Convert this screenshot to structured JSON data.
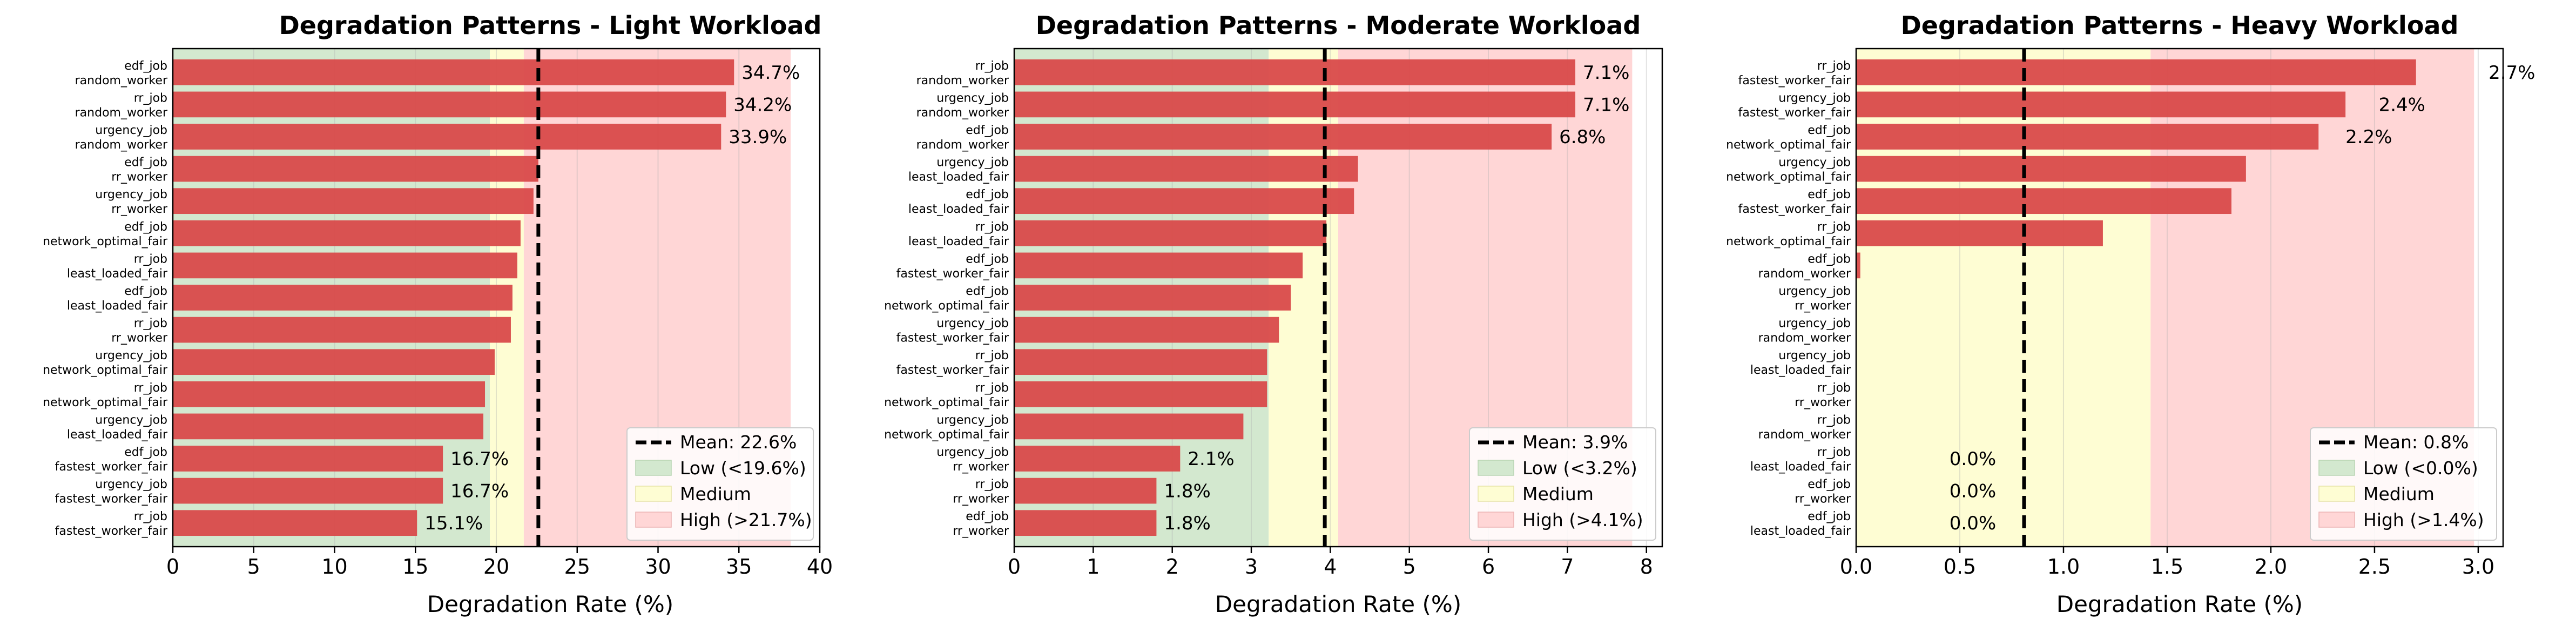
{
  "figure": {
    "colors": {
      "bar": "#d94a4a",
      "low_band": "#d3e8cf",
      "medium_band": "#fefdd3",
      "high_band": "#ffd6d6",
      "mean_line": "#000000"
    }
  },
  "chart_data": [
    {
      "type": "bar",
      "orientation": "horizontal",
      "title": "Degradation Patterns - Light Workload",
      "xlabel": "Degradation Rate (%)",
      "xlim": [
        0,
        40
      ],
      "xticks": [
        0,
        5,
        10,
        15,
        20,
        25,
        30,
        35,
        40
      ],
      "grid": true,
      "categories": [
        [
          "edf_job",
          "random_worker"
        ],
        [
          "rr_job",
          "random_worker"
        ],
        [
          "urgency_job",
          "random_worker"
        ],
        [
          "edf_job",
          "rr_worker"
        ],
        [
          "urgency_job",
          "rr_worker"
        ],
        [
          "edf_job",
          "network_optimal_fair"
        ],
        [
          "rr_job",
          "least_loaded_fair"
        ],
        [
          "edf_job",
          "least_loaded_fair"
        ],
        [
          "rr_job",
          "rr_worker"
        ],
        [
          "urgency_job",
          "network_optimal_fair"
        ],
        [
          "rr_job",
          "network_optimal_fair"
        ],
        [
          "urgency_job",
          "least_loaded_fair"
        ],
        [
          "edf_job",
          "fastest_worker_fair"
        ],
        [
          "urgency_job",
          "fastest_worker_fair"
        ],
        [
          "rr_job",
          "fastest_worker_fair"
        ]
      ],
      "values": [
        34.7,
        34.2,
        33.9,
        22.6,
        22.3,
        21.5,
        21.3,
        21.0,
        20.9,
        19.9,
        19.3,
        19.2,
        16.7,
        16.7,
        15.1
      ],
      "data_labels": [
        "34.7%",
        "34.2%",
        "33.9%",
        "",
        "",
        "",
        "",
        "",
        "",
        "",
        "",
        "",
        "16.7%",
        "16.7%",
        "15.1%"
      ],
      "mean": 22.6,
      "bands": {
        "low_max": 19.6,
        "high_min": 21.7,
        "high_max": 38.2
      },
      "legend": {
        "position": "lower right",
        "entries": [
          "Mean: 22.6%",
          "Low (<19.6%)",
          "Medium",
          "High (>21.7%)"
        ]
      }
    },
    {
      "type": "bar",
      "orientation": "horizontal",
      "title": "Degradation Patterns - Moderate Workload",
      "xlabel": "Degradation Rate (%)",
      "xlim": [
        0,
        8.2
      ],
      "xticks": [
        0,
        1,
        2,
        3,
        4,
        5,
        6,
        7,
        8
      ],
      "grid": true,
      "categories": [
        [
          "rr_job",
          "random_worker"
        ],
        [
          "urgency_job",
          "random_worker"
        ],
        [
          "edf_job",
          "random_worker"
        ],
        [
          "urgency_job",
          "least_loaded_fair"
        ],
        [
          "edf_job",
          "least_loaded_fair"
        ],
        [
          "rr_job",
          "least_loaded_fair"
        ],
        [
          "edf_job",
          "fastest_worker_fair"
        ],
        [
          "edf_job",
          "network_optimal_fair"
        ],
        [
          "urgency_job",
          "fastest_worker_fair"
        ],
        [
          "rr_job",
          "fastest_worker_fair"
        ],
        [
          "rr_job",
          "network_optimal_fair"
        ],
        [
          "urgency_job",
          "network_optimal_fair"
        ],
        [
          "urgency_job",
          "rr_worker"
        ],
        [
          "rr_job",
          "rr_worker"
        ],
        [
          "edf_job",
          "rr_worker"
        ]
      ],
      "values": [
        7.1,
        7.1,
        6.8,
        4.35,
        4.3,
        3.95,
        3.65,
        3.5,
        3.35,
        3.2,
        3.2,
        2.9,
        2.1,
        1.8,
        1.8
      ],
      "data_labels": [
        "7.1%",
        "7.1%",
        "6.8%",
        "",
        "",
        "",
        "",
        "",
        "",
        "",
        "",
        "",
        "2.1%",
        "1.8%",
        "1.8%"
      ],
      "mean": 3.93,
      "bands": {
        "low_max": 3.22,
        "high_min": 4.1,
        "high_max": 7.82
      },
      "legend": {
        "position": "lower right",
        "entries": [
          "Mean: 3.9%",
          "Low (<3.2%)",
          "Medium",
          "High (>4.1%)"
        ]
      }
    },
    {
      "type": "bar",
      "orientation": "horizontal",
      "title": "Degradation Patterns - Heavy Workload",
      "xlabel": "Degradation Rate (%)",
      "xlim": [
        0,
        3.12
      ],
      "xticks": [
        0.0,
        0.5,
        1.0,
        1.5,
        2.0,
        2.5,
        3.0
      ],
      "xtick_labels": [
        "0.0",
        "0.5",
        "1.0",
        "1.5",
        "2.0",
        "2.5",
        "3.0"
      ],
      "grid": true,
      "categories": [
        [
          "rr_job",
          "fastest_worker_fair"
        ],
        [
          "urgency_job",
          "fastest_worker_fair"
        ],
        [
          "edf_job",
          "network_optimal_fair"
        ],
        [
          "urgency_job",
          "network_optimal_fair"
        ],
        [
          "edf_job",
          "fastest_worker_fair"
        ],
        [
          "rr_job",
          "network_optimal_fair"
        ],
        [
          "edf_job",
          "random_worker"
        ],
        [
          "urgency_job",
          "rr_worker"
        ],
        [
          "urgency_job",
          "random_worker"
        ],
        [
          "urgency_job",
          "least_loaded_fair"
        ],
        [
          "rr_job",
          "rr_worker"
        ],
        [
          "rr_job",
          "random_worker"
        ],
        [
          "rr_job",
          "least_loaded_fair"
        ],
        [
          "edf_job",
          "rr_worker"
        ],
        [
          "edf_job",
          "least_loaded_fair"
        ]
      ],
      "values": [
        2.7,
        2.36,
        2.23,
        1.88,
        1.81,
        1.19,
        0.02,
        0.0,
        0.0,
        0.0,
        0.0,
        0.0,
        0.0,
        0.0,
        0.0
      ],
      "data_labels": [
        "2.7%",
        "2.4%",
        "2.2%",
        "",
        "",
        "",
        "",
        "",
        "",
        "",
        "",
        "",
        "0.0%",
        "0.0%",
        "0.0%"
      ],
      "label_x": [
        3.05,
        2.52,
        2.36,
        null,
        null,
        null,
        null,
        null,
        null,
        null,
        null,
        null,
        0.45,
        0.45,
        0.45
      ],
      "mean": 0.81,
      "bands": {
        "low_max": 0.0,
        "medium_max": 1.42,
        "high_min": 1.42,
        "high_max": 2.98
      },
      "legend": {
        "position": "lower right",
        "entries": [
          "Mean: 0.8%",
          "Low (<0.0%)",
          "Medium",
          "High (>1.4%)"
        ]
      }
    }
  ]
}
